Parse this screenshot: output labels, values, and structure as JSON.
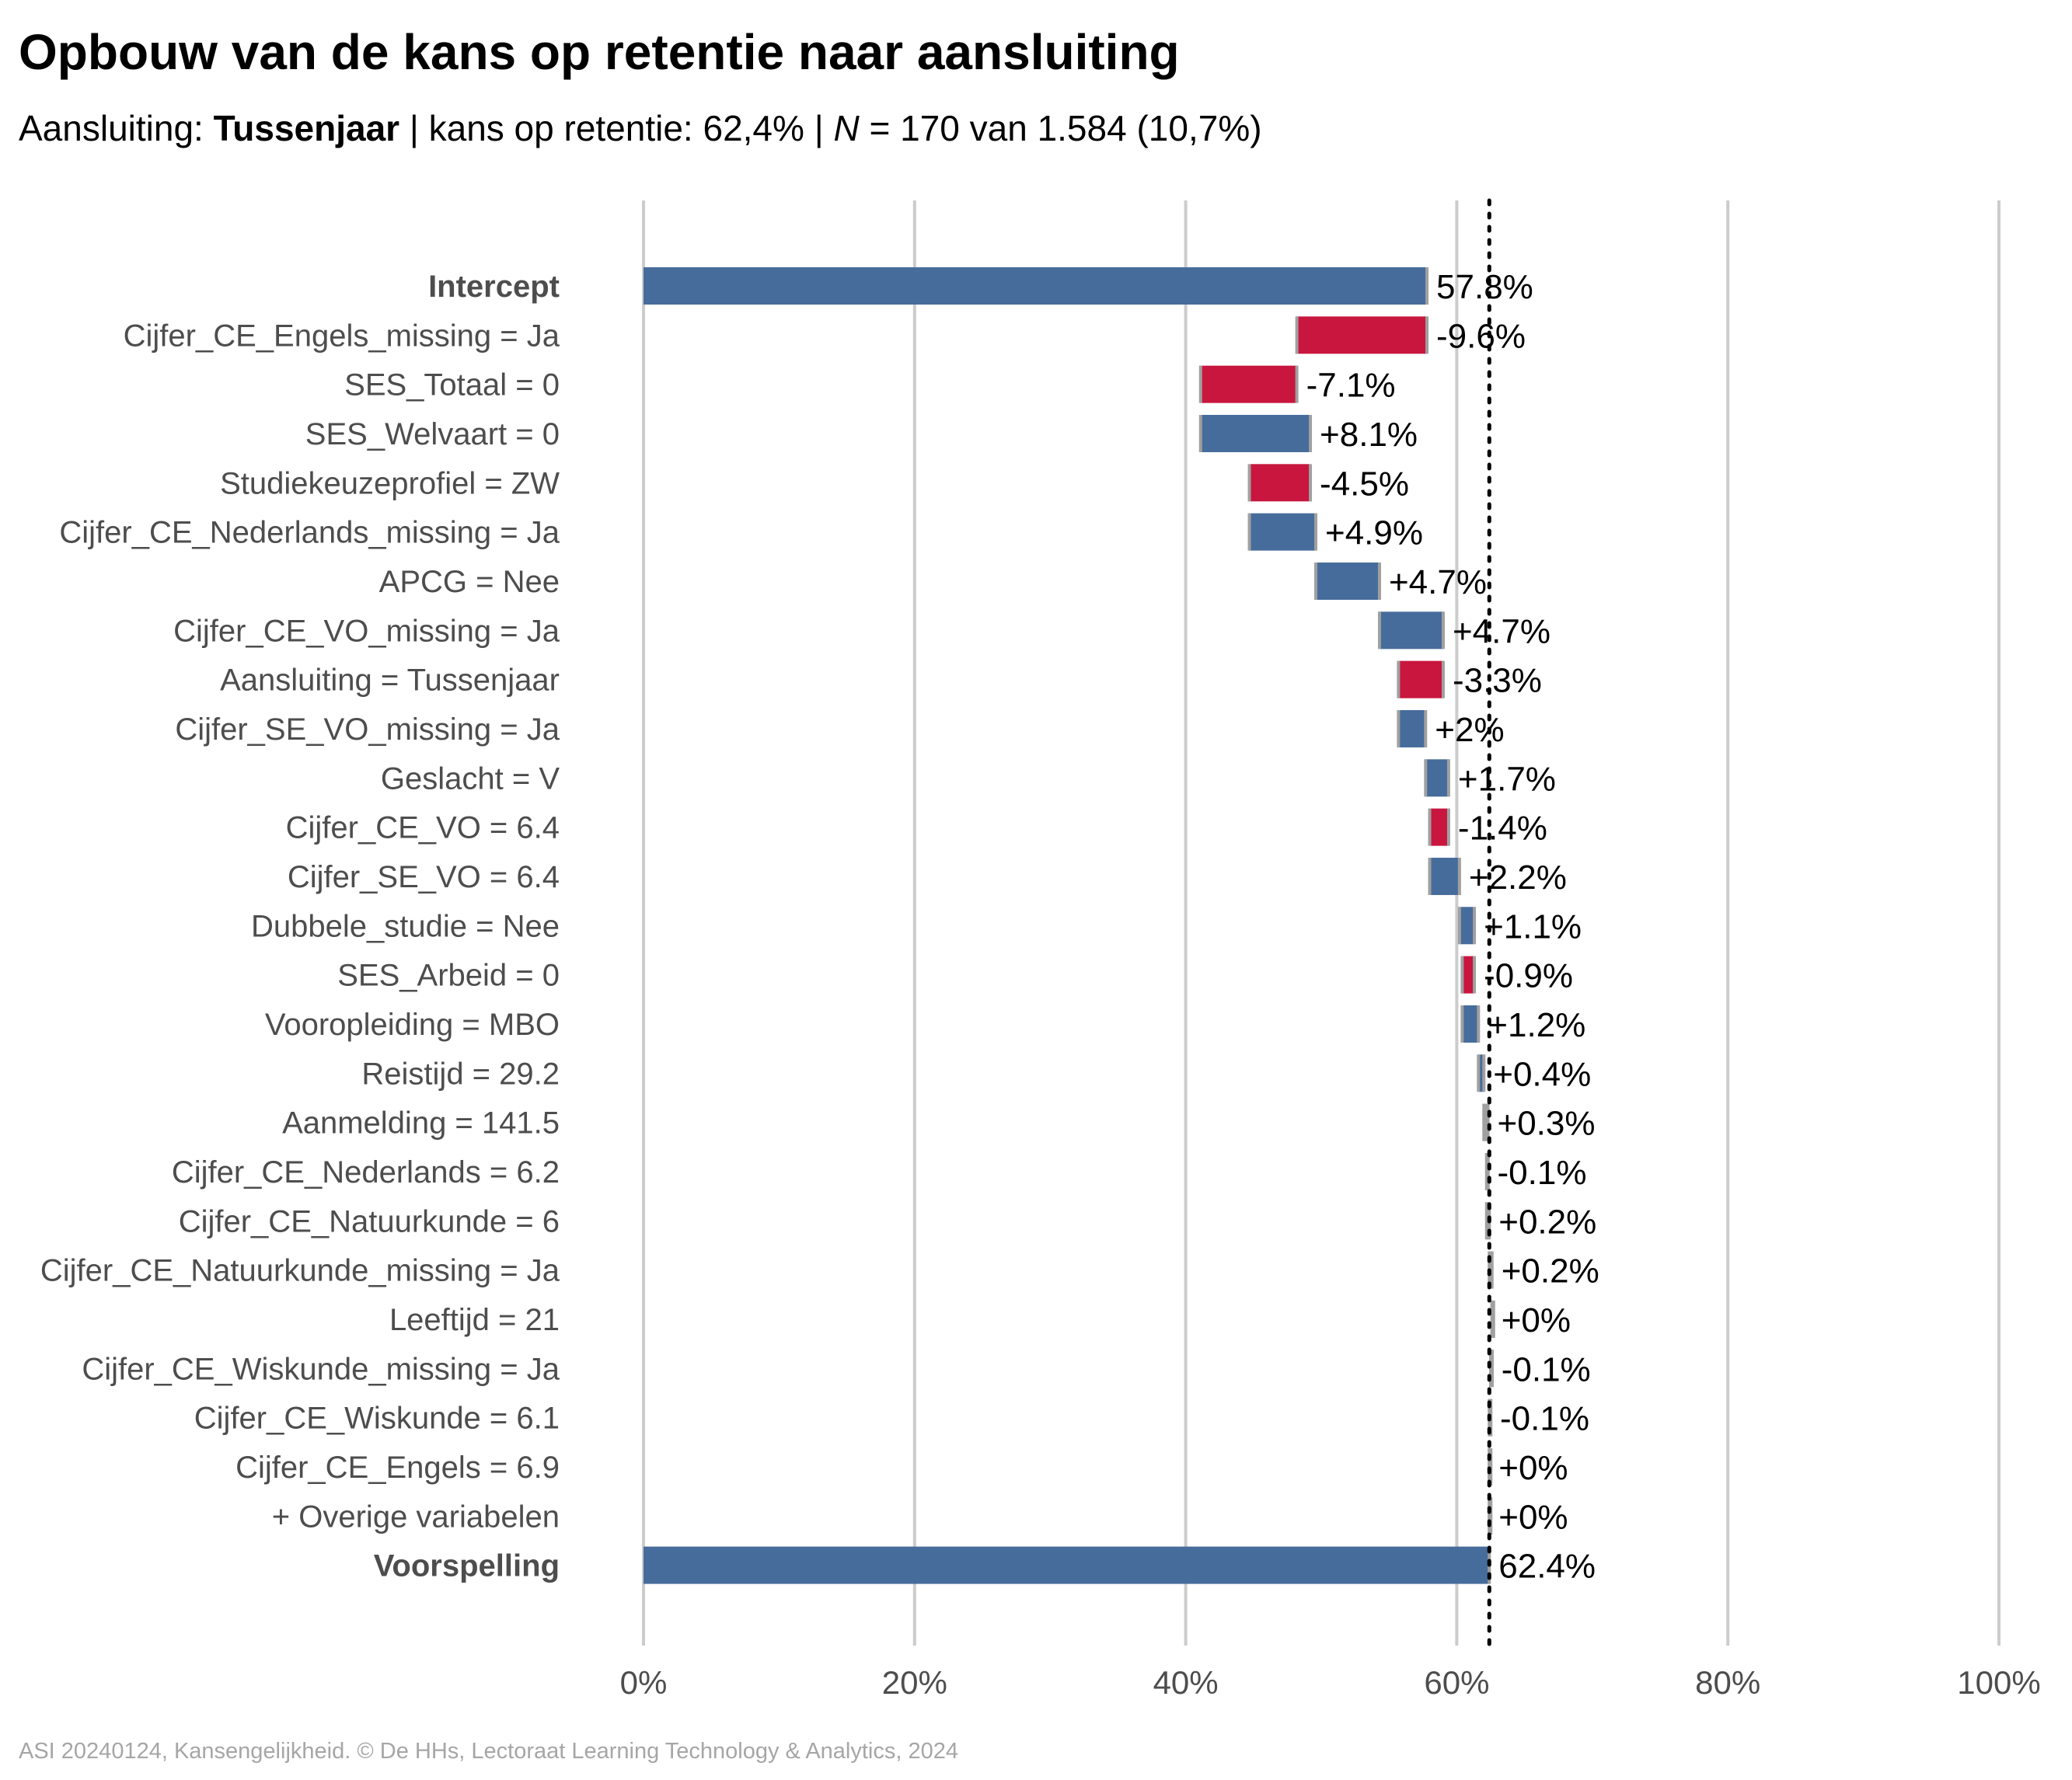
{
  "title": "Opbouw van de kans op retentie naar aansluiting",
  "subtitle": {
    "label": "Aansluiting:",
    "group": "Tussenjaar",
    "prob_text": "| kans op retentie: 62,4% |",
    "n_symbol": "N",
    "n_text": "= 170 van 1.584 (10,7%)"
  },
  "caption": "ASI 20240124, Kansengelijkheid. © De HHs, Lectoraat Learning Technology & Analytics, 2024",
  "colors": {
    "positive": "#466C9B",
    "negative": "#C8163E",
    "neutral": "#A0A0A0",
    "grid": "#CCCCCC",
    "label": "#4D4D4D"
  },
  "chart_data": {
    "type": "bar",
    "subtype": "waterfall",
    "orientation": "horizontal",
    "xlim": [
      0,
      100
    ],
    "x_ticks": [
      "0%",
      "20%",
      "40%",
      "60%",
      "80%",
      "100%"
    ],
    "x_tick_values": [
      0,
      20,
      40,
      60,
      80,
      100
    ],
    "reference_line": 62.4,
    "bars": [
      {
        "label": "Intercept",
        "start": 0,
        "end": 57.8,
        "value_label": "57.8%",
        "kind": "total"
      },
      {
        "label": "Cijfer_CE_Engels_missing = Ja",
        "start": 57.8,
        "end": 48.2,
        "value_label": "-9.6%",
        "kind": "negative"
      },
      {
        "label": "SES_Totaal = 0",
        "start": 48.2,
        "end": 41.1,
        "value_label": "-7.1%",
        "kind": "negative"
      },
      {
        "label": "SES_Welvaart = 0",
        "start": 41.1,
        "end": 49.2,
        "value_label": "+8.1%",
        "kind": "positive"
      },
      {
        "label": "Studiekeuzeprofiel = ZW",
        "start": 49.2,
        "end": 44.7,
        "value_label": "-4.5%",
        "kind": "negative"
      },
      {
        "label": "Cijfer_CE_Nederlands_missing = Ja",
        "start": 44.7,
        "end": 49.6,
        "value_label": "+4.9%",
        "kind": "positive"
      },
      {
        "label": "APCG = Nee",
        "start": 49.6,
        "end": 54.3,
        "value_label": "+4.7%",
        "kind": "positive"
      },
      {
        "label": "Cijfer_CE_VO_missing = Ja",
        "start": 54.3,
        "end": 59.0,
        "value_label": "+4.7%",
        "kind": "positive"
      },
      {
        "label": "Aansluiting = Tussenjaar",
        "start": 59.0,
        "end": 55.7,
        "value_label": "-3.3%",
        "kind": "negative"
      },
      {
        "label": "Cijfer_SE_VO_missing = Ja",
        "start": 55.7,
        "end": 57.7,
        "value_label": "+2%",
        "kind": "positive"
      },
      {
        "label": "Geslacht = V",
        "start": 57.7,
        "end": 59.4,
        "value_label": "+1.7%",
        "kind": "positive"
      },
      {
        "label": "Cijfer_CE_VO = 6.4",
        "start": 59.4,
        "end": 58.0,
        "value_label": "-1.4%",
        "kind": "negative"
      },
      {
        "label": "Cijfer_SE_VO = 6.4",
        "start": 58.0,
        "end": 60.2,
        "value_label": "+2.2%",
        "kind": "positive"
      },
      {
        "label": "Dubbele_studie = Nee",
        "start": 60.2,
        "end": 61.3,
        "value_label": "+1.1%",
        "kind": "positive"
      },
      {
        "label": "SES_Arbeid = 0",
        "start": 61.3,
        "end": 60.4,
        "value_label": "-0.9%",
        "kind": "negative"
      },
      {
        "label": "Vooropleiding = MBO",
        "start": 60.4,
        "end": 61.6,
        "value_label": "+1.2%",
        "kind": "positive"
      },
      {
        "label": "Reistijd = 29.2",
        "start": 61.6,
        "end": 62.0,
        "value_label": "+0.4%",
        "kind": "positive"
      },
      {
        "label": "Aanmelding = 141.5",
        "start": 62.0,
        "end": 62.3,
        "value_label": "+0.3%",
        "kind": "neutral"
      },
      {
        "label": "Cijfer_CE_Nederlands = 6.2",
        "start": 62.3,
        "end": 62.2,
        "value_label": "-0.1%",
        "kind": "neutral"
      },
      {
        "label": "Cijfer_CE_Natuurkunde = 6",
        "start": 62.2,
        "end": 62.4,
        "value_label": "+0.2%",
        "kind": "neutral"
      },
      {
        "label": "Cijfer_CE_Natuurkunde_missing = Ja",
        "start": 62.4,
        "end": 62.6,
        "value_label": "+0.2%",
        "kind": "neutral"
      },
      {
        "label": "Leeftijd = 21",
        "start": 62.6,
        "end": 62.6,
        "value_label": "+0%",
        "kind": "neutral"
      },
      {
        "label": "Cijfer_CE_Wiskunde_missing = Ja",
        "start": 62.6,
        "end": 62.5,
        "value_label": "-0.1%",
        "kind": "neutral"
      },
      {
        "label": "Cijfer_CE_Wiskunde = 6.1",
        "start": 62.5,
        "end": 62.4,
        "value_label": "-0.1%",
        "kind": "neutral"
      },
      {
        "label": "Cijfer_CE_Engels = 6.9",
        "start": 62.4,
        "end": 62.4,
        "value_label": "+0%",
        "kind": "neutral"
      },
      {
        "label": "+ Overige variabelen",
        "start": 62.4,
        "end": 62.4,
        "value_label": "+0%",
        "kind": "neutral"
      },
      {
        "label": "Voorspelling",
        "start": 0,
        "end": 62.4,
        "value_label": "62.4%",
        "kind": "total"
      }
    ]
  }
}
